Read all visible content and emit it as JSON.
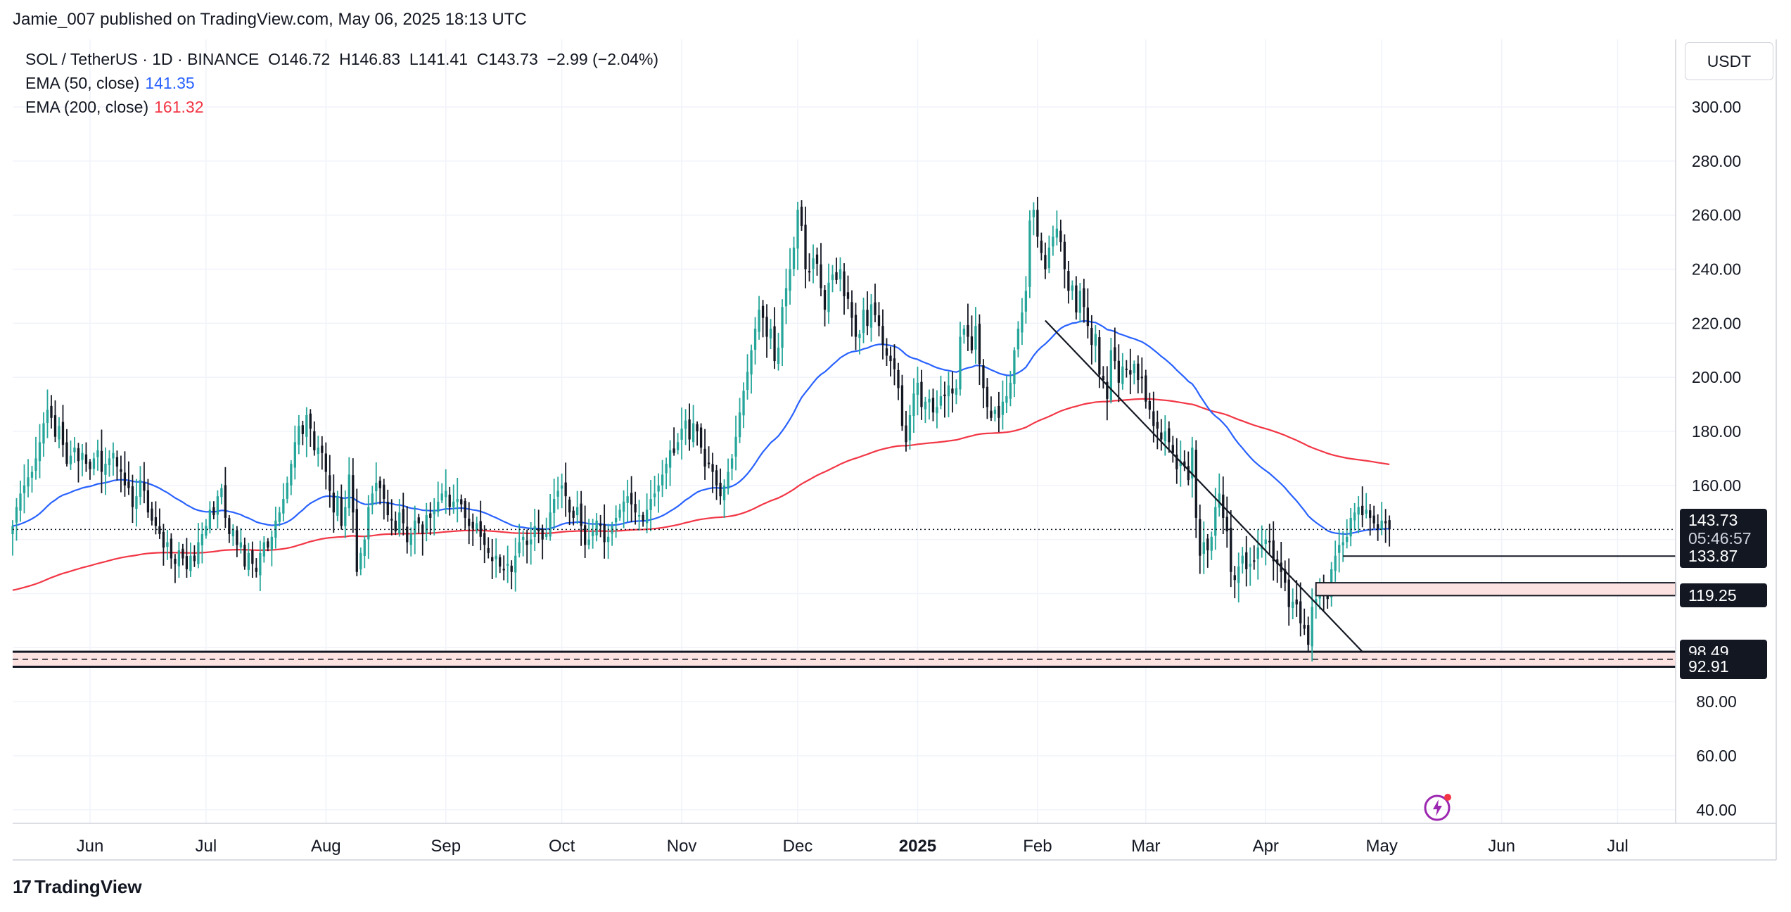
{
  "header": {
    "publisher_line": "Jamie_007 published on TradingView.com, May 06, 2025 18:13 UTC"
  },
  "legend": {
    "symbol_line": "SOL / TetherUS · 1D · BINANCE  O146.72  H146.83  L141.41  C143.73  −2.99 (−2.04%)",
    "ema50_label": "EMA (50, close)",
    "ema50_value": "141.35",
    "ema200_label": "EMA (200, close)",
    "ema200_value": "161.32"
  },
  "price_scale": {
    "currency": "USDT",
    "last_price": "143.73",
    "countdown": "05:46:57",
    "level_tags": [
      "133.87",
      "119.25",
      "98.49",
      "92.91"
    ]
  },
  "footer": {
    "brand": "TradingView"
  },
  "colors": {
    "up": "#26a69a",
    "down": "#131722",
    "ema50": "#2962ff",
    "ema200": "#f23645",
    "zone_fill": "#fde2e2",
    "grid": "#f0f3fa"
  },
  "chart_data": {
    "type": "candlestick",
    "title": "SOL / TetherUS · 1D · BINANCE",
    "y_scale": "linear",
    "ylim": [
      35,
      325
    ],
    "yticks": [
      "300.00",
      "280.00",
      "260.00",
      "240.00",
      "220.00",
      "200.00",
      "180.00",
      "160.00",
      "140.00",
      "120.00",
      "100.00",
      "80.00",
      "60.00",
      "40.00"
    ],
    "xlim": [
      "2024-05-12",
      "2025-07-16"
    ],
    "x_ticks": [
      {
        "date": "2024-06-01",
        "label": "Jun"
      },
      {
        "date": "2024-07-01",
        "label": "Jul"
      },
      {
        "date": "2024-08-01",
        "label": "Aug"
      },
      {
        "date": "2024-09-01",
        "label": "Sep"
      },
      {
        "date": "2024-10-01",
        "label": "Oct"
      },
      {
        "date": "2024-11-01",
        "label": "Nov"
      },
      {
        "date": "2024-12-01",
        "label": "Dec"
      },
      {
        "date": "2025-01-01",
        "label": "2025"
      },
      {
        "date": "2025-02-01",
        "label": "Feb"
      },
      {
        "date": "2025-03-01",
        "label": "Mar"
      },
      {
        "date": "2025-04-01",
        "label": "Apr"
      },
      {
        "date": "2025-05-01",
        "label": "May"
      },
      {
        "date": "2025-06-01",
        "label": "Jun"
      },
      {
        "date": "2025-07-01",
        "label": "Jul"
      }
    ],
    "first_date": "2024-05-12",
    "close_series": [
      145,
      152,
      157,
      160,
      163,
      165,
      170,
      176,
      183,
      188,
      185,
      178,
      182,
      175,
      168,
      171,
      174,
      169,
      172,
      168,
      166,
      170,
      173,
      165,
      168,
      170,
      172,
      167,
      165,
      160,
      159,
      152,
      156,
      162,
      158,
      150,
      147,
      145,
      142,
      137,
      139,
      133,
      131,
      136,
      133,
      129,
      134,
      132,
      139,
      142,
      145,
      151,
      149,
      156,
      159,
      148,
      142,
      144,
      138,
      139,
      130,
      135,
      131,
      128,
      135,
      139,
      137,
      141,
      147,
      150,
      155,
      161,
      168,
      176,
      182,
      179,
      186,
      181,
      173,
      174,
      172,
      165,
      158,
      150,
      156,
      145,
      152,
      164,
      150,
      128,
      135,
      140,
      152,
      157,
      161,
      159,
      155,
      149,
      147,
      143,
      150,
      146,
      139,
      142,
      147,
      146,
      142,
      149,
      148,
      151,
      154,
      157,
      158,
      152,
      154,
      155,
      153,
      148,
      145,
      144,
      146,
      141,
      138,
      135,
      132,
      134,
      130,
      129,
      131,
      128,
      134,
      139,
      141,
      138,
      140,
      145,
      143,
      140,
      142,
      150,
      155,
      158,
      160,
      156,
      150,
      148,
      152,
      145,
      138,
      140,
      143,
      147,
      145,
      139,
      141,
      145,
      148,
      151,
      154,
      156,
      153,
      150,
      149,
      147,
      151,
      155,
      157,
      160,
      164,
      168,
      173,
      172,
      176,
      181,
      184,
      177,
      183,
      180,
      174,
      167,
      168,
      165,
      160,
      156,
      160,
      165,
      170,
      178,
      187,
      195,
      202,
      210,
      218,
      225,
      222,
      215,
      218,
      206,
      211,
      226,
      233,
      240,
      248,
      262,
      256,
      240,
      239,
      244,
      242,
      233,
      225,
      235,
      238,
      236,
      240,
      230,
      229,
      222,
      215,
      216,
      225,
      219,
      227,
      223,
      219,
      212,
      208,
      206,
      203,
      196,
      182,
      176,
      186,
      194,
      198,
      189,
      191,
      192,
      187,
      189,
      193,
      193,
      197,
      194,
      196,
      215,
      218,
      215,
      210,
      219,
      205,
      196,
      189,
      185,
      188,
      185,
      191,
      193,
      198,
      210,
      218,
      224,
      232,
      258,
      262,
      252,
      246,
      240,
      248,
      252,
      255,
      250,
      240,
      232,
      234,
      224,
      232,
      226,
      219,
      212,
      216,
      201,
      199,
      192,
      210,
      206,
      198,
      204,
      203,
      201,
      205,
      199,
      200,
      191,
      188,
      182,
      181,
      177,
      180,
      176,
      172,
      166,
      169,
      167,
      162,
      174,
      148,
      134,
      139,
      136,
      141,
      152,
      157,
      148,
      143,
      128,
      125,
      130,
      134,
      129,
      131,
      132,
      137,
      138,
      140,
      139,
      132,
      131,
      128,
      124,
      115,
      117,
      116,
      109,
      107,
      101,
      115,
      118,
      121,
      120,
      118,
      129,
      134,
      138,
      139,
      141,
      148,
      150,
      152,
      149,
      151,
      148,
      146,
      144,
      147,
      146,
      143.73
    ],
    "ema50": {
      "name": "EMA (50, close)",
      "last": 141.35
    },
    "ema200": {
      "name": "EMA (200, close)",
      "last": 161.32
    },
    "trendline": {
      "from": {
        "date": "2025-02-03",
        "price": 221
      },
      "to": {
        "date": "2025-04-26",
        "price": 98.49
      }
    },
    "horizontal_levels": [
      133.87,
      119.25,
      98.49,
      92.91
    ],
    "support_zone": [
      92.91,
      98.49
    ],
    "last_close": 143.73
  }
}
